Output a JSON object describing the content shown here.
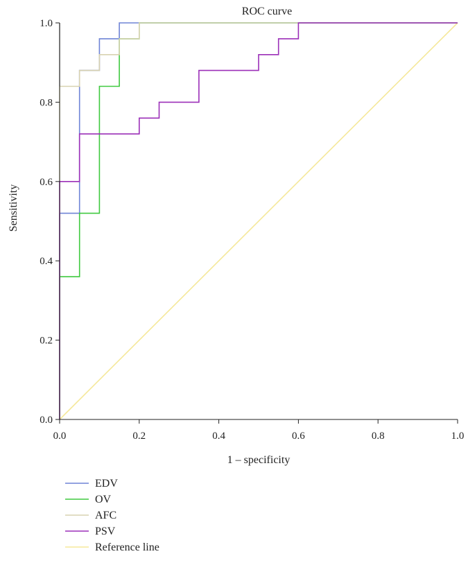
{
  "chart_data": {
    "type": "line",
    "title": "ROC curve",
    "xlabel": "1 – specificity",
    "ylabel": "Sensitivity",
    "xlim": [
      0,
      1
    ],
    "ylim": [
      0,
      1
    ],
    "xticks": [
      "0.0",
      "0.2",
      "0.4",
      "0.6",
      "0.8",
      "1.0"
    ],
    "yticks": [
      "0.0",
      "0.2",
      "0.4",
      "0.6",
      "0.8",
      "1.0"
    ],
    "grid": false,
    "legend_position": "bottom-left",
    "series": [
      {
        "name": "EDV",
        "color": "#6f84d6",
        "x": [
          0,
          0,
          0.05,
          0.05,
          0.05,
          0.1,
          0.1,
          0.15,
          0.15,
          1
        ],
        "y": [
          0,
          0.52,
          0.52,
          0.84,
          0.88,
          0.88,
          0.96,
          0.96,
          1.0,
          1.0
        ]
      },
      {
        "name": "OV",
        "color": "#3fc93f",
        "x": [
          0,
          0,
          0.05,
          0.05,
          0.1,
          0.1,
          0.15,
          0.15,
          0.2,
          0.2,
          1
        ],
        "y": [
          0,
          0.36,
          0.36,
          0.52,
          0.52,
          0.84,
          0.84,
          0.96,
          0.96,
          1.0,
          1.0
        ]
      },
      {
        "name": "AFC",
        "color": "#d8d2b0",
        "x": [
          0,
          0,
          0.05,
          0.05,
          0.1,
          0.1,
          0.15,
          0.15,
          0.2,
          0.2,
          1
        ],
        "y": [
          0,
          0.84,
          0.84,
          0.88,
          0.88,
          0.92,
          0.92,
          0.96,
          0.96,
          1.0,
          1.0
        ]
      },
      {
        "name": "PSV",
        "color": "#9b2fb8",
        "x": [
          0,
          0,
          0.05,
          0.05,
          0.2,
          0.2,
          0.25,
          0.25,
          0.35,
          0.35,
          0.5,
          0.5,
          0.55,
          0.55,
          0.6,
          0.6,
          1
        ],
        "y": [
          0,
          0.6,
          0.6,
          0.72,
          0.72,
          0.76,
          0.76,
          0.8,
          0.8,
          0.88,
          0.88,
          0.92,
          0.92,
          0.96,
          0.96,
          1.0,
          1.0
        ]
      },
      {
        "name": "Reference line",
        "color": "#f5e89a",
        "x": [
          0,
          1
        ],
        "y": [
          0,
          1
        ]
      }
    ],
    "extra_lines": [
      {
        "color": "#a8a8a8",
        "x": [
          0,
          0
        ],
        "y": [
          0.84,
          1.0
        ]
      }
    ]
  }
}
